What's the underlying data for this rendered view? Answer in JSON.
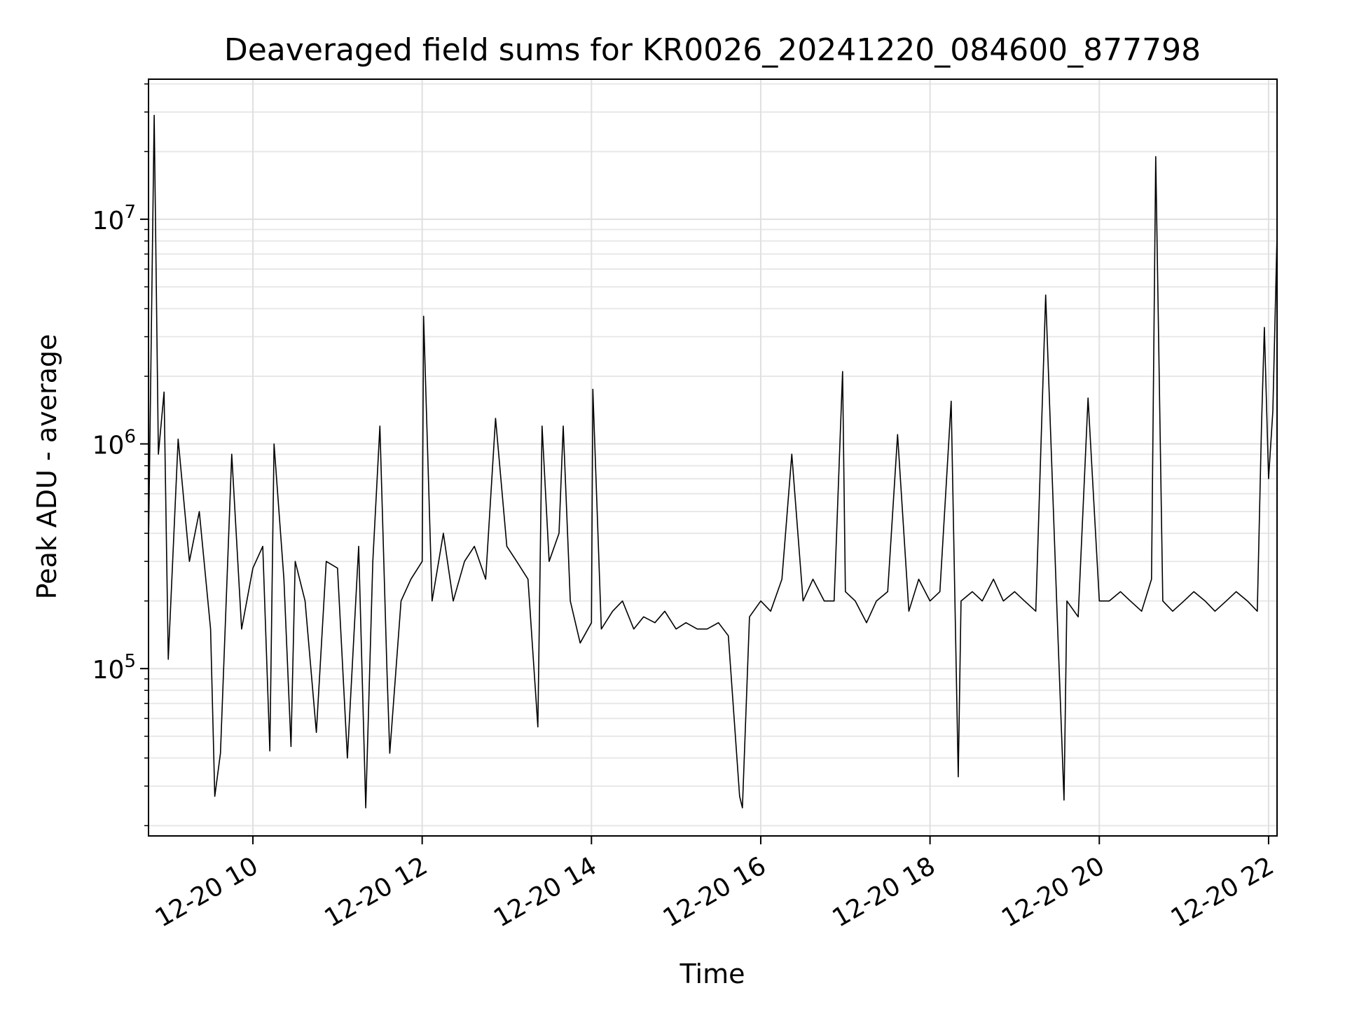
{
  "chart_data": {
    "type": "line",
    "title": "Deaveraged field sums for KR0026_20241220_084600_877798",
    "xlabel": "Time",
    "ylabel": "Peak ADU - average",
    "yscale": "log",
    "ylim": [
      18000,
      42000000
    ],
    "xlim": [
      "2024-12-20 08:46",
      "2024-12-20 22:06"
    ],
    "grid": true,
    "x_ticks": [
      {
        "t": "2024-12-20 10:00",
        "label": "12-20 10"
      },
      {
        "t": "2024-12-20 12:00",
        "label": "12-20 12"
      },
      {
        "t": "2024-12-20 14:00",
        "label": "12-20 14"
      },
      {
        "t": "2024-12-20 16:00",
        "label": "12-20 16"
      },
      {
        "t": "2024-12-20 18:00",
        "label": "12-20 18"
      },
      {
        "t": "2024-12-20 20:00",
        "label": "12-20 20"
      },
      {
        "t": "2024-12-20 22:00",
        "label": "12-20 22"
      }
    ],
    "y_ticks": [
      {
        "value": 100000,
        "base": "10",
        "exp": "5"
      },
      {
        "value": 1000000,
        "base": "10",
        "exp": "6"
      },
      {
        "value": 10000000,
        "base": "10",
        "exp": "7"
      }
    ],
    "series": [
      {
        "color": "#000000",
        "points": [
          [
            "2024-12-20 08:46",
            350000
          ],
          [
            "2024-12-20 08:50",
            29000000
          ],
          [
            "2024-12-20 08:53",
            900000
          ],
          [
            "2024-12-20 08:57",
            1700000
          ],
          [
            "2024-12-20 09:00",
            110000
          ],
          [
            "2024-12-20 09:07",
            1050000
          ],
          [
            "2024-12-20 09:15",
            300000
          ],
          [
            "2024-12-20 09:22",
            500000
          ],
          [
            "2024-12-20 09:30",
            150000
          ],
          [
            "2024-12-20 09:33",
            27000
          ],
          [
            "2024-12-20 09:37",
            42000
          ],
          [
            "2024-12-20 09:45",
            900000
          ],
          [
            "2024-12-20 09:52",
            150000
          ],
          [
            "2024-12-20 10:00",
            280000
          ],
          [
            "2024-12-20 10:07",
            350000
          ],
          [
            "2024-12-20 10:12",
            43000
          ],
          [
            "2024-12-20 10:15",
            1000000
          ],
          [
            "2024-12-20 10:22",
            250000
          ],
          [
            "2024-12-20 10:27",
            45000
          ],
          [
            "2024-12-20 10:30",
            300000
          ],
          [
            "2024-12-20 10:37",
            200000
          ],
          [
            "2024-12-20 10:45",
            52000
          ],
          [
            "2024-12-20 10:52",
            300000
          ],
          [
            "2024-12-20 11:00",
            280000
          ],
          [
            "2024-12-20 11:07",
            40000
          ],
          [
            "2024-12-20 11:15",
            350000
          ],
          [
            "2024-12-20 11:20",
            24000
          ],
          [
            "2024-12-20 11:25",
            300000
          ],
          [
            "2024-12-20 11:30",
            1200000
          ],
          [
            "2024-12-20 11:35",
            100000
          ],
          [
            "2024-12-20 11:37",
            42000
          ],
          [
            "2024-12-20 11:45",
            200000
          ],
          [
            "2024-12-20 11:52",
            250000
          ],
          [
            "2024-12-20 12:00",
            300000
          ],
          [
            "2024-12-20 12:01",
            3700000
          ],
          [
            "2024-12-20 12:07",
            200000
          ],
          [
            "2024-12-20 12:15",
            400000
          ],
          [
            "2024-12-20 12:22",
            200000
          ],
          [
            "2024-12-20 12:30",
            300000
          ],
          [
            "2024-12-20 12:37",
            350000
          ],
          [
            "2024-12-20 12:45",
            250000
          ],
          [
            "2024-12-20 12:52",
            1300000
          ],
          [
            "2024-12-20 13:00",
            350000
          ],
          [
            "2024-12-20 13:07",
            300000
          ],
          [
            "2024-12-20 13:15",
            250000
          ],
          [
            "2024-12-20 13:22",
            55000
          ],
          [
            "2024-12-20 13:25",
            1200000
          ],
          [
            "2024-12-20 13:30",
            300000
          ],
          [
            "2024-12-20 13:37",
            400000
          ],
          [
            "2024-12-20 13:40",
            1200000
          ],
          [
            "2024-12-20 13:45",
            200000
          ],
          [
            "2024-12-20 13:52",
            130000
          ],
          [
            "2024-12-20 14:00",
            160000
          ],
          [
            "2024-12-20 14:01",
            1750000
          ],
          [
            "2024-12-20 14:07",
            150000
          ],
          [
            "2024-12-20 14:15",
            180000
          ],
          [
            "2024-12-20 14:22",
            200000
          ],
          [
            "2024-12-20 14:30",
            150000
          ],
          [
            "2024-12-20 14:37",
            170000
          ],
          [
            "2024-12-20 14:45",
            160000
          ],
          [
            "2024-12-20 14:52",
            180000
          ],
          [
            "2024-12-20 15:00",
            150000
          ],
          [
            "2024-12-20 15:07",
            160000
          ],
          [
            "2024-12-20 15:15",
            150000
          ],
          [
            "2024-12-20 15:22",
            150000
          ],
          [
            "2024-12-20 15:30",
            160000
          ],
          [
            "2024-12-20 15:37",
            140000
          ],
          [
            "2024-12-20 15:45",
            27000
          ],
          [
            "2024-12-20 15:47",
            24000
          ],
          [
            "2024-12-20 15:52",
            170000
          ],
          [
            "2024-12-20 16:00",
            200000
          ],
          [
            "2024-12-20 16:07",
            180000
          ],
          [
            "2024-12-20 16:15",
            250000
          ],
          [
            "2024-12-20 16:22",
            900000
          ],
          [
            "2024-12-20 16:30",
            200000
          ],
          [
            "2024-12-20 16:37",
            250000
          ],
          [
            "2024-12-20 16:45",
            200000
          ],
          [
            "2024-12-20 16:52",
            200000
          ],
          [
            "2024-12-20 16:58",
            2100000
          ],
          [
            "2024-12-20 17:00",
            220000
          ],
          [
            "2024-12-20 17:07",
            200000
          ],
          [
            "2024-12-20 17:15",
            160000
          ],
          [
            "2024-12-20 17:22",
            200000
          ],
          [
            "2024-12-20 17:30",
            220000
          ],
          [
            "2024-12-20 17:37",
            1100000
          ],
          [
            "2024-12-20 17:45",
            180000
          ],
          [
            "2024-12-20 17:52",
            250000
          ],
          [
            "2024-12-20 18:00",
            200000
          ],
          [
            "2024-12-20 18:07",
            220000
          ],
          [
            "2024-12-20 18:15",
            1550000
          ],
          [
            "2024-12-20 18:20",
            33000
          ],
          [
            "2024-12-20 18:22",
            200000
          ],
          [
            "2024-12-20 18:30",
            220000
          ],
          [
            "2024-12-20 18:37",
            200000
          ],
          [
            "2024-12-20 18:45",
            250000
          ],
          [
            "2024-12-20 18:52",
            200000
          ],
          [
            "2024-12-20 19:00",
            220000
          ],
          [
            "2024-12-20 19:07",
            200000
          ],
          [
            "2024-12-20 19:15",
            180000
          ],
          [
            "2024-12-20 19:22",
            4600000
          ],
          [
            "2024-12-20 19:30",
            180000
          ],
          [
            "2024-12-20 19:35",
            26000
          ],
          [
            "2024-12-20 19:37",
            200000
          ],
          [
            "2024-12-20 19:45",
            170000
          ],
          [
            "2024-12-20 19:52",
            1600000
          ],
          [
            "2024-12-20 20:00",
            200000
          ],
          [
            "2024-12-20 20:07",
            200000
          ],
          [
            "2024-12-20 20:15",
            220000
          ],
          [
            "2024-12-20 20:22",
            200000
          ],
          [
            "2024-12-20 20:30",
            180000
          ],
          [
            "2024-12-20 20:37",
            250000
          ],
          [
            "2024-12-20 20:40",
            19000000
          ],
          [
            "2024-12-20 20:45",
            200000
          ],
          [
            "2024-12-20 20:52",
            180000
          ],
          [
            "2024-12-20 21:00",
            200000
          ],
          [
            "2024-12-20 21:07",
            220000
          ],
          [
            "2024-12-20 21:15",
            200000
          ],
          [
            "2024-12-20 21:22",
            180000
          ],
          [
            "2024-12-20 21:30",
            200000
          ],
          [
            "2024-12-20 21:37",
            220000
          ],
          [
            "2024-12-20 21:45",
            200000
          ],
          [
            "2024-12-20 21:52",
            180000
          ],
          [
            "2024-12-20 21:55",
            1200000
          ],
          [
            "2024-12-20 21:57",
            3300000
          ],
          [
            "2024-12-20 22:00",
            700000
          ],
          [
            "2024-12-20 22:03",
            1400000
          ],
          [
            "2024-12-20 22:06",
            8500000
          ]
        ]
      }
    ]
  }
}
